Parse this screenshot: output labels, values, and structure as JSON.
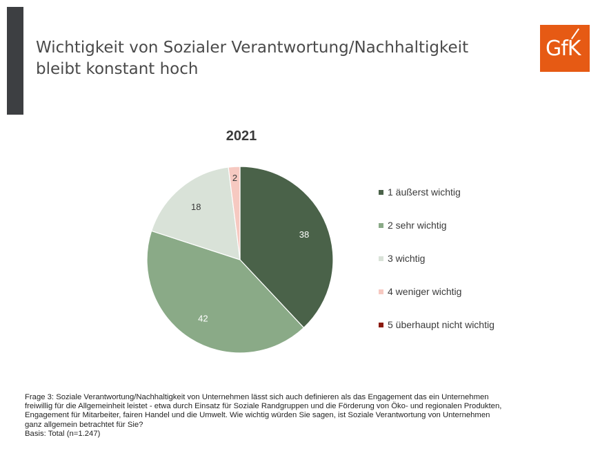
{
  "header": {
    "title_line1": "Wichtigkeit von Sozialer Verantwortung/Nachhaltigkeit",
    "title_line2": "bleibt konstant hoch",
    "logo_text": "GfK"
  },
  "colors": {
    "side_bar": "#3d3f42",
    "logo_bg": "#e65a14"
  },
  "chart_data": {
    "type": "pie",
    "title": "2021",
    "unit": "%",
    "start_angle_deg": 0,
    "direction": "clockwise",
    "categories": [
      "1 äußerst wichtig",
      "2 sehr wichtig",
      "3 wichtig",
      "4 weniger wichtig",
      "5 überhaupt nicht wichtig"
    ],
    "values": [
      38,
      42,
      18,
      2,
      0
    ],
    "value_labels": [
      "38",
      "42",
      "18",
      "2",
      ""
    ],
    "colors": [
      "#4a6249",
      "#8aaa87",
      "#d9e2d8",
      "#f6c9c1",
      "#8b1a0e"
    ],
    "label_colors": [
      "#ffffff",
      "#ffffff",
      "#3a3a3a",
      "#3a3a3a",
      "#3a3a3a"
    ],
    "legend_position": "right"
  },
  "footer": {
    "question_line1": "Frage 3: Soziale Verantwortung/Nachhaltigkeit von Unternehmen lässt sich auch definieren als das Engagement das ein Unternehmen",
    "question_line2": "freiwillig für die Allgemeinheit leistet - etwa durch Einsatz für Soziale Randgruppen und die Förderung von Öko- und regionalen Produkten,",
    "question_line3": "Engagement für Mitarbeiter, fairen Handel und die Umwelt. Wie wichtig würden Sie sagen, ist Soziale Verantwortung von Unternehmen",
    "question_line4": "ganz allgemein betrachtet für Sie?",
    "basis": "Basis: Total (n=1.247)"
  }
}
